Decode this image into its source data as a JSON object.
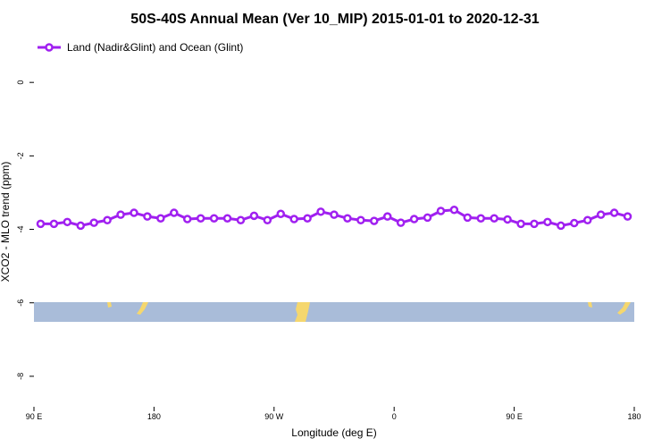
{
  "chart_data": {
    "type": "line",
    "title": "50S-40S Annual Mean (Ver 10_MIP)   2015-01-01 to 2020-12-31",
    "xlabel": "Longitude (deg E)",
    "ylabel": "XCO2 - MLO trend (ppm)",
    "x": [
      95,
      105,
      115,
      125,
      135,
      145,
      155,
      165,
      175,
      185,
      195,
      205,
      215,
      225,
      235,
      245,
      255,
      265,
      275,
      285,
      295,
      305,
      315,
      325,
      335,
      345,
      355,
      365,
      375,
      385,
      395,
      405,
      415,
      425,
      435,
      445,
      455,
      465,
      475,
      485,
      495,
      505,
      515,
      525,
      535
    ],
    "series": [
      {
        "name": "Land (Nadir&Glint) and Ocean (Glint)",
        "color": "#a020f0",
        "values": [
          -3.85,
          -3.85,
          -3.8,
          -3.9,
          -3.82,
          -3.75,
          -3.6,
          -3.55,
          -3.65,
          -3.7,
          -3.55,
          -3.72,
          -3.7,
          -3.7,
          -3.7,
          -3.75,
          -3.63,
          -3.75,
          -3.58,
          -3.72,
          -3.7,
          -3.52,
          -3.6,
          -3.7,
          -3.75,
          -3.77,
          -3.65,
          -3.82,
          -3.72,
          -3.68,
          -3.5,
          -3.47,
          -3.68,
          -3.7,
          -3.7,
          -3.73,
          -3.85,
          -3.85,
          -3.8,
          -3.9,
          -3.83,
          -3.75,
          -3.6,
          -3.55,
          -3.65
        ]
      }
    ],
    "xlim": [
      90,
      540
    ],
    "xticks": [
      {
        "value": 90,
        "label": "90 E"
      },
      180,
      {
        "value": 270,
        "label": "90 W"
      },
      {
        "value": 360,
        "label": "0"
      },
      {
        "value": 450,
        "label": "90 E"
      },
      {
        "value": 540,
        "label": "180"
      }
    ],
    "ylim": [
      -8.83,
      1.27
    ],
    "yticks": [
      0,
      -2,
      -4,
      -6,
      -8
    ],
    "legend": "top-left"
  }
}
